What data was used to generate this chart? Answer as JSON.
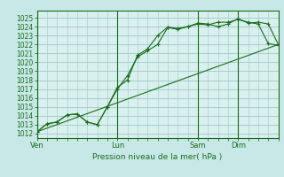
{
  "background_color": "#c8e8e8",
  "plot_bg_color": "#d8f0ee",
  "grid_color": "#a0c8c8",
  "line_color": "#1a6b1a",
  "xlabel": "Pression niveau de la mer( hPa )",
  "ylim": [
    1011.5,
    1025.8
  ],
  "yticks": [
    1012,
    1013,
    1014,
    1015,
    1016,
    1017,
    1018,
    1019,
    1020,
    1021,
    1022,
    1023,
    1024,
    1025
  ],
  "xtick_labels": [
    "Ven",
    "Lun",
    "Sam",
    "Dim"
  ],
  "xtick_positions": [
    0,
    48,
    96,
    120
  ],
  "total_hours": 144,
  "line1": {
    "x": [
      0,
      6,
      12,
      18,
      24,
      30,
      36,
      42,
      48,
      54,
      60,
      66,
      72,
      78,
      84,
      90,
      96,
      102,
      108,
      114,
      120,
      126,
      132,
      138,
      144
    ],
    "y": [
      1012.2,
      1013.1,
      1013.3,
      1014.1,
      1014.2,
      1013.3,
      1013.0,
      1015.0,
      1017.0,
      1018.5,
      1020.6,
      1021.3,
      1022.0,
      1023.9,
      1023.7,
      1024.0,
      1024.3,
      1024.2,
      1024.5,
      1024.5,
      1024.8,
      1024.5,
      1024.3,
      1022.1,
      1021.9
    ]
  },
  "line2": {
    "x": [
      0,
      6,
      12,
      18,
      24,
      30,
      36,
      42,
      48,
      54,
      60,
      66,
      72,
      78,
      84,
      90,
      96,
      102,
      108,
      114,
      120,
      126,
      132,
      138,
      144
    ],
    "y": [
      1012.2,
      1013.1,
      1013.3,
      1014.1,
      1014.2,
      1013.3,
      1013.0,
      1015.0,
      1017.2,
      1018.0,
      1020.8,
      1021.5,
      1023.0,
      1023.95,
      1023.8,
      1024.0,
      1024.4,
      1024.3,
      1024.0,
      1024.3,
      1024.9,
      1024.4,
      1024.5,
      1024.3,
      1022.0
    ]
  },
  "line3": {
    "x": [
      0,
      144
    ],
    "y": [
      1012.2,
      1022.0
    ]
  },
  "vlines": [
    0,
    48,
    96,
    120
  ]
}
